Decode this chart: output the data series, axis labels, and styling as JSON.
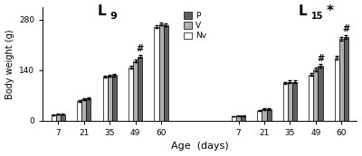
{
  "ages": [
    7,
    21,
    35,
    49,
    60
  ],
  "L9": {
    "Nv": [
      16,
      55,
      122,
      148,
      260
    ],
    "V": [
      18,
      60,
      124,
      165,
      268
    ],
    "P": [
      18,
      62,
      126,
      178,
      265
    ]
  },
  "L9_err": {
    "Nv": [
      2,
      3,
      3,
      4,
      4
    ],
    "V": [
      2,
      3,
      3,
      4,
      4
    ],
    "P": [
      2,
      3,
      3,
      4,
      4
    ]
  },
  "L15": {
    "Nv": [
      12,
      28,
      105,
      128,
      175
    ],
    "V": [
      14,
      32,
      108,
      142,
      228
    ],
    "P": [
      14,
      32,
      108,
      152,
      232
    ]
  },
  "L15_err": {
    "Nv": [
      1,
      2,
      3,
      4,
      5
    ],
    "V": [
      1,
      2,
      3,
      4,
      5
    ],
    "P": [
      1,
      2,
      3,
      4,
      5
    ]
  },
  "colors": {
    "P": "#606060",
    "V": "#b0b0b0",
    "Nv": "#ffffff"
  },
  "edgecolor": "#000000",
  "ylabel": "Body weight (g)",
  "xlabel": "Age  (days)",
  "yticks": [
    0,
    140,
    280
  ],
  "background_color": "#ffffff",
  "bar_order": [
    "Nv",
    "V",
    "P"
  ],
  "L9_hash_age_idx": 3,
  "L15_hash_age_idx_1": 3,
  "L15_hash_age_idx_2": 4,
  "legend_labels": [
    "P",
    "V",
    "Nv"
  ]
}
